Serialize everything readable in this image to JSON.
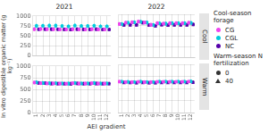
{
  "chart_data": [
    {
      "type": "scatter",
      "title": "2021",
      "ylabel": "In vitro digestible organic matter (g kg⁻¹)",
      "xlabel": "AEI gradient",
      "legend": "right",
      "annotations": [
        {
          "text": "Cool-season forage"
        },
        {
          "text": "Warm-season N fertilization"
        },
        {
          "text": "0",
          "marker": "circle"
        },
        {
          "text": "40",
          "marker": "triangle"
        }
      ],
      "x": [
        1,
        2,
        3,
        4,
        5,
        6,
        7,
        8,
        9,
        10,
        11,
        12
      ],
      "xlim": [
        0.4,
        12.6
      ],
      "xticks": [
        1,
        2,
        3,
        4,
        5,
        6,
        7,
        8,
        9,
        10,
        11,
        12
      ],
      "ylim": [
        0,
        1000
      ],
      "yticks": [
        0,
        250,
        500,
        750,
        1000
      ],
      "grid": true,
      "tick_labels": "y",
      "series": [
        {
          "name": "CG",
          "color": "#ee44ee",
          "marker": "circle",
          "values": [
            670,
            675,
            672,
            670,
            668,
            668,
            672,
            668,
            668,
            672,
            668,
            668
          ],
          "yerr": [
            40,
            40,
            40,
            40,
            40,
            40,
            40,
            40,
            40,
            40,
            40,
            40
          ]
        },
        {
          "name": "CG",
          "color": "#ee44ee",
          "marker": "triangle",
          "values": [
            650,
            655,
            650,
            648,
            645,
            645,
            650,
            645,
            645,
            650,
            645,
            645
          ],
          "yerr": [
            30,
            30,
            30,
            30,
            30,
            30,
            30,
            30,
            30,
            30,
            30,
            30
          ]
        },
        {
          "name": "CGL",
          "color": "#00ccdd",
          "marker": "circle",
          "values": [
            755,
            755,
            760,
            760,
            750,
            742,
            762,
            750,
            750,
            758,
            742,
            742
          ],
          "yerr": [
            45,
            45,
            45,
            45,
            45,
            45,
            45,
            45,
            45,
            45,
            45,
            45
          ]
        },
        {
          "name": "CGL",
          "color": "#00ccdd",
          "marker": "triangle",
          "values": [
            735,
            740,
            738,
            738,
            730,
            722,
            742,
            730,
            730,
            738,
            725,
            725
          ],
          "yerr": [
            30,
            30,
            30,
            30,
            30,
            30,
            30,
            30,
            30,
            30,
            30,
            30
          ]
        },
        {
          "name": "NC",
          "color": "#5500aa",
          "marker": "circle",
          "values": [
            668,
            672,
            670,
            668,
            665,
            660,
            670,
            665,
            665,
            670,
            662,
            662
          ],
          "yerr": [
            30,
            30,
            30,
            30,
            30,
            30,
            30,
            30,
            30,
            30,
            30,
            30
          ]
        },
        {
          "name": "NC",
          "color": "#5500aa",
          "marker": "triangle",
          "values": [
            648,
            652,
            650,
            648,
            645,
            640,
            650,
            645,
            645,
            650,
            642,
            642
          ],
          "yerr": [
            25,
            25,
            25,
            25,
            25,
            25,
            25,
            25,
            25,
            25,
            25,
            25
          ]
        }
      ]
    },
    {
      "type": "scatter",
      "title": "2022",
      "annotations": [
        {
          "text": "Cool"
        }
      ],
      "x": [
        1,
        2,
        3,
        4,
        5,
        6,
        7,
        8,
        9,
        10,
        11,
        12
      ],
      "xlim": [
        0.4,
        12.6
      ],
      "xticks": [
        1,
        2,
        3,
        4,
        5,
        6,
        7,
        8,
        9,
        10,
        11,
        12
      ],
      "ylim": [
        0,
        1000
      ],
      "yticks": [
        0,
        250,
        500,
        750,
        1000
      ],
      "grid": true,
      "tick_labels": false,
      "series": [
        {
          "name": "CG",
          "color": "#ee44ee",
          "marker": "circle",
          "values": [
            780,
            810,
            820,
            835,
            815,
            760,
            798,
            788,
            800,
            800,
            800,
            808
          ],
          "yerr": [
            35,
            35,
            35,
            35,
            35,
            35,
            35,
            35,
            35,
            35,
            35,
            35
          ]
        },
        {
          "name": "CG",
          "color": "#ee44ee",
          "marker": "triangle",
          "values": [
            760,
            790,
            800,
            815,
            795,
            740,
            778,
            768,
            780,
            780,
            780,
            788
          ],
          "yerr": [
            30,
            30,
            30,
            30,
            30,
            30,
            30,
            30,
            30,
            30,
            30,
            30
          ]
        },
        {
          "name": "CGL",
          "color": "#00ccdd",
          "marker": "circle",
          "values": [
            778,
            808,
            818,
            832,
            812,
            758,
            796,
            786,
            798,
            798,
            798,
            806
          ],
          "yerr": [
            35,
            35,
            35,
            35,
            35,
            35,
            35,
            35,
            35,
            35,
            35,
            35
          ]
        },
        {
          "name": "CGL",
          "color": "#00ccdd",
          "marker": "triangle",
          "values": [
            758,
            788,
            798,
            812,
            792,
            738,
            776,
            766,
            778,
            778,
            778,
            786
          ],
          "yerr": [
            30,
            30,
            30,
            30,
            30,
            30,
            30,
            30,
            30,
            30,
            30,
            30
          ]
        },
        {
          "name": "NC",
          "color": "#5500aa",
          "marker": "circle",
          "values": [
            755,
            758,
            758,
            808,
            752,
            738,
            762,
            752,
            758,
            758,
            758,
            768
          ],
          "yerr": [
            28,
            28,
            28,
            28,
            28,
            28,
            28,
            28,
            28,
            28,
            28,
            28
          ]
        },
        {
          "name": "NC",
          "color": "#5500aa",
          "marker": "triangle",
          "values": [
            735,
            738,
            738,
            788,
            732,
            718,
            742,
            732,
            738,
            738,
            738,
            748
          ],
          "yerr": [
            25,
            25,
            25,
            25,
            25,
            25,
            25,
            25,
            25,
            25,
            25,
            25
          ]
        }
      ]
    },
    {
      "type": "scatter",
      "x": [
        1,
        2,
        3,
        4,
        5,
        6,
        7,
        8,
        9,
        10,
        11,
        12
      ],
      "xlim": [
        0.4,
        12.6
      ],
      "xticks": [
        1,
        2,
        3,
        4,
        5,
        6,
        7,
        8,
        9,
        10,
        11,
        12
      ],
      "ylim": [
        0,
        1000
      ],
      "yticks": [
        0,
        250,
        500,
        750,
        1000
      ],
      "grid": true,
      "tick_labels": true,
      "series": [
        {
          "name": "CG",
          "color": "#ee44ee",
          "marker": "circle",
          "values": [
            652,
            640,
            635,
            635,
            632,
            630,
            638,
            632,
            632,
            638,
            632,
            632
          ],
          "yerr": [
            25,
            25,
            25,
            25,
            25,
            25,
            25,
            25,
            25,
            25,
            25,
            25
          ]
        },
        {
          "name": "CG",
          "color": "#ee44ee",
          "marker": "triangle",
          "values": [
            632,
            620,
            615,
            615,
            612,
            610,
            618,
            612,
            612,
            618,
            612,
            612
          ],
          "yerr": [
            25,
            25,
            25,
            25,
            25,
            25,
            25,
            25,
            25,
            25,
            25,
            25
          ]
        },
        {
          "name": "CGL",
          "color": "#00ccdd",
          "marker": "circle",
          "values": [
            658,
            642,
            638,
            638,
            635,
            632,
            645,
            635,
            635,
            642,
            635,
            635
          ],
          "yerr": [
            25,
            25,
            25,
            25,
            25,
            25,
            25,
            25,
            25,
            25,
            25,
            25
          ]
        },
        {
          "name": "CGL",
          "color": "#00ccdd",
          "marker": "triangle",
          "values": [
            638,
            622,
            618,
            618,
            615,
            612,
            625,
            615,
            615,
            622,
            615,
            615
          ],
          "yerr": [
            25,
            25,
            25,
            25,
            25,
            25,
            25,
            25,
            25,
            25,
            25,
            25
          ]
        },
        {
          "name": "NC",
          "color": "#5500aa",
          "marker": "circle",
          "values": [
            645,
            638,
            632,
            630,
            628,
            626,
            634,
            628,
            628,
            632,
            628,
            628
          ],
          "yerr": [
            22,
            22,
            22,
            22,
            22,
            22,
            22,
            22,
            22,
            22,
            22,
            22
          ]
        },
        {
          "name": "NC",
          "color": "#5500aa",
          "marker": "triangle",
          "values": [
            625,
            618,
            612,
            610,
            608,
            606,
            614,
            608,
            608,
            612,
            608,
            608
          ],
          "yerr": [
            22,
            22,
            22,
            22,
            22,
            22,
            22,
            22,
            22,
            22,
            22,
            22
          ]
        }
      ]
    },
    {
      "type": "scatter",
      "annotations": [
        {
          "text": "Warm"
        }
      ],
      "x": [
        1,
        2,
        3,
        4,
        5,
        6,
        7,
        8,
        9,
        10,
        11,
        12
      ],
      "xlim": [
        0.4,
        12.6
      ],
      "xticks": [
        1,
        2,
        3,
        4,
        5,
        6,
        7,
        8,
        9,
        10,
        11,
        12
      ],
      "ylim": [
        0,
        1000
      ],
      "yticks": [
        0,
        250,
        500,
        750,
        1000
      ],
      "grid": true,
      "tick_labels": "x",
      "series": [
        {
          "name": "CG",
          "color": "#ee44ee",
          "marker": "circle",
          "values": [
            648,
            640,
            638,
            645,
            638,
            638,
            645,
            645,
            645,
            645,
            645,
            650
          ],
          "yerr": [
            20,
            20,
            20,
            20,
            20,
            20,
            20,
            20,
            20,
            20,
            20,
            20
          ]
        },
        {
          "name": "CG",
          "color": "#ee44ee",
          "marker": "triangle",
          "values": [
            632,
            625,
            623,
            630,
            623,
            623,
            630,
            630,
            630,
            630,
            630,
            635
          ],
          "yerr": [
            18,
            18,
            18,
            18,
            18,
            18,
            18,
            18,
            18,
            18,
            18,
            18
          ]
        },
        {
          "name": "CGL",
          "color": "#00ccdd",
          "marker": "circle",
          "values": [
            648,
            642,
            640,
            647,
            640,
            640,
            647,
            647,
            647,
            647,
            647,
            652
          ],
          "yerr": [
            20,
            20,
            20,
            20,
            20,
            20,
            20,
            20,
            20,
            20,
            20,
            20
          ]
        },
        {
          "name": "CGL",
          "color": "#00ccdd",
          "marker": "triangle",
          "values": [
            632,
            627,
            625,
            632,
            625,
            625,
            632,
            632,
            632,
            632,
            632,
            637
          ],
          "yerr": [
            18,
            18,
            18,
            18,
            18,
            18,
            18,
            18,
            18,
            18,
            18,
            18
          ]
        },
        {
          "name": "NC",
          "color": "#5500aa",
          "marker": "circle",
          "values": [
            630,
            626,
            624,
            630,
            624,
            624,
            630,
            630,
            630,
            630,
            630,
            635
          ],
          "yerr": [
            18,
            18,
            18,
            18,
            18,
            18,
            18,
            18,
            18,
            18,
            18,
            18
          ]
        },
        {
          "name": "NC",
          "color": "#5500aa",
          "marker": "triangle",
          "values": [
            614,
            610,
            608,
            614,
            608,
            608,
            614,
            614,
            614,
            614,
            614,
            618
          ],
          "yerr": [
            16,
            16,
            16,
            16,
            16,
            16,
            16,
            16,
            16,
            16,
            16,
            16
          ]
        }
      ]
    }
  ]
}
